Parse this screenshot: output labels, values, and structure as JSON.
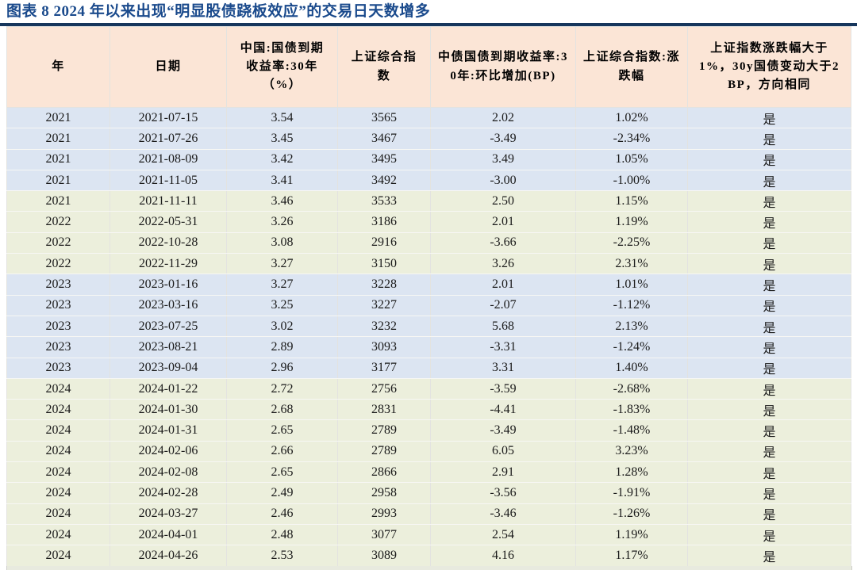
{
  "chart_data": {
    "type": "table",
    "title": "图表 8  2024 年以来出现“明显股债跷板效应”的交易日天数增多",
    "columns": [
      "年",
      "日期",
      "中国:国债到期收益率:30年（%）",
      "上证综合指数",
      "中债国债到期收益率:30年:环比增加(BP)",
      "上证综合指数:涨跌幅",
      "上证指数涨跌幅大于1%，30y国债变动大于2BP，方向相同"
    ],
    "rows": [
      {
        "band": "blue",
        "cells": [
          "2021",
          "2021-07-15",
          "3.54",
          "3565",
          "2.02",
          "1.02%",
          "是"
        ]
      },
      {
        "band": "blue",
        "cells": [
          "2021",
          "2021-07-26",
          "3.45",
          "3467",
          "-3.49",
          "-2.34%",
          "是"
        ]
      },
      {
        "band": "blue",
        "cells": [
          "2021",
          "2021-08-09",
          "3.42",
          "3495",
          "3.49",
          "1.05%",
          "是"
        ]
      },
      {
        "band": "blue",
        "cells": [
          "2021",
          "2021-11-05",
          "3.41",
          "3492",
          "-3.00",
          "-1.00%",
          "是"
        ]
      },
      {
        "band": "green",
        "cells": [
          "2021",
          "2021-11-11",
          "3.46",
          "3533",
          "2.50",
          "1.15%",
          "是"
        ]
      },
      {
        "band": "green",
        "cells": [
          "2022",
          "2022-05-31",
          "3.26",
          "3186",
          "2.01",
          "1.19%",
          "是"
        ]
      },
      {
        "band": "green",
        "cells": [
          "2022",
          "2022-10-28",
          "3.08",
          "2916",
          "-3.66",
          "-2.25%",
          "是"
        ]
      },
      {
        "band": "green",
        "cells": [
          "2022",
          "2022-11-29",
          "3.27",
          "3150",
          "3.26",
          "2.31%",
          "是"
        ]
      },
      {
        "band": "blue",
        "cells": [
          "2023",
          "2023-01-16",
          "3.27",
          "3228",
          "2.01",
          "1.01%",
          "是"
        ]
      },
      {
        "band": "blue",
        "cells": [
          "2023",
          "2023-03-16",
          "3.25",
          "3227",
          "-2.07",
          "-1.12%",
          "是"
        ]
      },
      {
        "band": "blue",
        "cells": [
          "2023",
          "2023-07-25",
          "3.02",
          "3232",
          "5.68",
          "2.13%",
          "是"
        ]
      },
      {
        "band": "blue",
        "cells": [
          "2023",
          "2023-08-21",
          "2.89",
          "3093",
          "-3.31",
          "-1.24%",
          "是"
        ]
      },
      {
        "band": "blue",
        "cells": [
          "2023",
          "2023-09-04",
          "2.96",
          "3177",
          "3.31",
          "1.40%",
          "是"
        ]
      },
      {
        "band": "green",
        "cells": [
          "2024",
          "2024-01-22",
          "2.72",
          "2756",
          "-3.59",
          "-2.68%",
          "是"
        ]
      },
      {
        "band": "green",
        "cells": [
          "2024",
          "2024-01-30",
          "2.68",
          "2831",
          "-4.41",
          "-1.83%",
          "是"
        ]
      },
      {
        "band": "green",
        "cells": [
          "2024",
          "2024-01-31",
          "2.65",
          "2789",
          "-3.49",
          "-1.48%",
          "是"
        ]
      },
      {
        "band": "green",
        "cells": [
          "2024",
          "2024-02-06",
          "2.66",
          "2789",
          "6.05",
          "3.23%",
          "是"
        ]
      },
      {
        "band": "green",
        "cells": [
          "2024",
          "2024-02-08",
          "2.65",
          "2866",
          "2.91",
          "1.28%",
          "是"
        ]
      },
      {
        "band": "green",
        "cells": [
          "2024",
          "2024-02-28",
          "2.49",
          "2958",
          "-3.56",
          "-1.91%",
          "是"
        ]
      },
      {
        "band": "green",
        "cells": [
          "2024",
          "2024-03-27",
          "2.46",
          "2993",
          "-3.46",
          "-1.26%",
          "是"
        ]
      },
      {
        "band": "green",
        "cells": [
          "2024",
          "2024-04-01",
          "2.48",
          "3077",
          "2.54",
          "1.19%",
          "是"
        ]
      },
      {
        "band": "green",
        "cells": [
          "2024",
          "2024-04-26",
          "2.53",
          "3089",
          "4.16",
          "1.17%",
          "是"
        ]
      }
    ]
  },
  "colors": {
    "header_bg": "#fbe5d6",
    "band_blue": "#dce5f2",
    "band_green": "#ecefdc",
    "title_color": "#1a4a8c",
    "rule_color": "#16365c",
    "clipped_row_bg": "#e8eadf"
  }
}
